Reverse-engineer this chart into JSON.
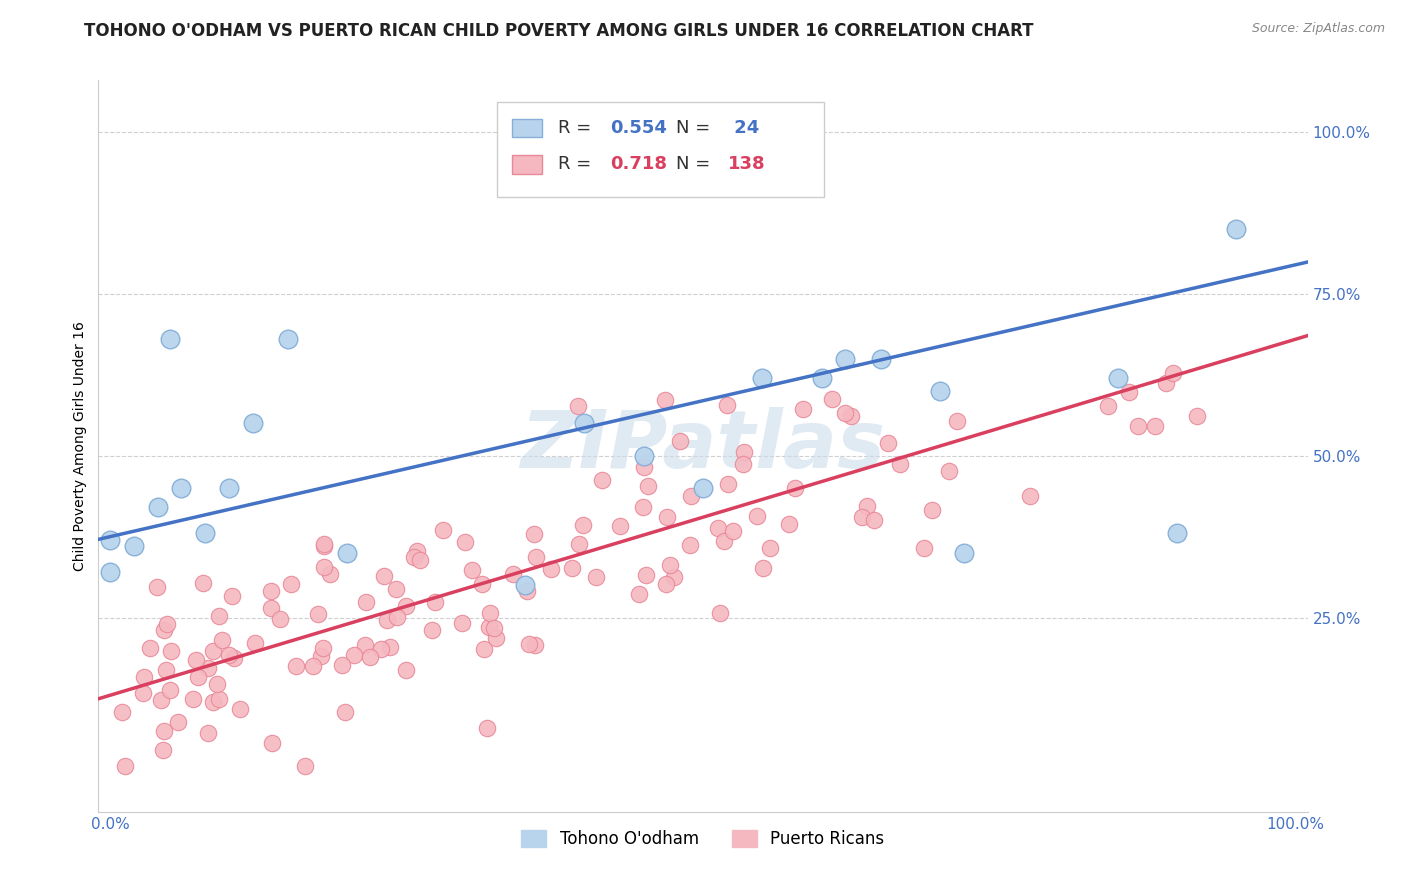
{
  "title": "TOHONO O'ODHAM VS PUERTO RICAN CHILD POVERTY AMONG GIRLS UNDER 16 CORRELATION CHART",
  "source_text": "Source: ZipAtlas.com",
  "ylabel": "Child Poverty Among Girls Under 16",
  "watermark": "ZIPatlas",
  "xlim": [
    -0.01,
    1.01
  ],
  "ylim": [
    -0.05,
    1.08
  ],
  "xtick_labels": [
    "0.0%",
    "",
    "",
    "",
    "100.0%"
  ],
  "xtick_vals": [
    0.0,
    0.25,
    0.5,
    0.75,
    1.0
  ],
  "ytick_labels": [
    "25.0%",
    "50.0%",
    "75.0%",
    "100.0%"
  ],
  "ytick_vals": [
    0.25,
    0.5,
    0.75,
    1.0
  ],
  "legend_r1": "R = ",
  "legend_v1": "0.554",
  "legend_n1_label": "N = ",
  "legend_v1n": " 24",
  "legend_r2": "R = ",
  "legend_v2": "0.718",
  "legend_n2_label": "N = ",
  "legend_v2n": "138",
  "series1_color": "#b8d4ec",
  "series1_edge": "#85afd8",
  "series2_color": "#f5b8c0",
  "series2_edge": "#e88898",
  "line1_color": "#4472c4",
  "line2_color": "#d94060",
  "tick_color": "#4472c4",
  "background_color": "#ffffff",
  "grid_color": "#d0d0d0",
  "title_fontsize": 12,
  "axis_label_fontsize": 10,
  "tick_fontsize": 11,
  "watermark_color": "#ccdcec",
  "watermark_alpha": 0.6,
  "watermark_fontsize": 58,
  "series1_N": 24,
  "series2_N": 138,
  "line1_intercept": 0.375,
  "line1_slope": 0.42,
  "line2_intercept": 0.13,
  "line2_slope": 0.55
}
